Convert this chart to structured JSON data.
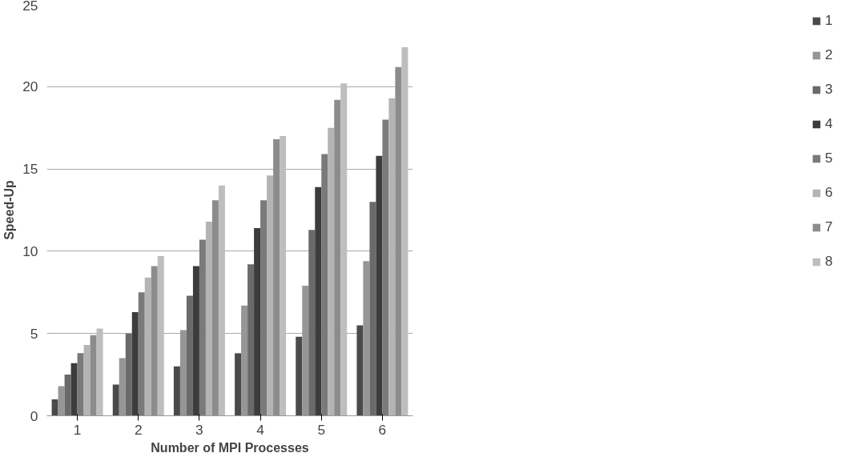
{
  "chart_data": {
    "type": "bar",
    "xlabel": "Number of MPI Processes",
    "ylabel": "Speed-Up",
    "categories": [
      "1",
      "2",
      "3",
      "4",
      "5",
      "6"
    ],
    "series": [
      {
        "name": "1",
        "color": "#4a4a4a",
        "values": [
          1.0,
          1.9,
          3.0,
          3.8,
          4.8,
          5.5
        ]
      },
      {
        "name": "2",
        "color": "#969696",
        "values": [
          1.8,
          3.5,
          5.2,
          6.7,
          7.9,
          9.4
        ]
      },
      {
        "name": "3",
        "color": "#6a6a6a",
        "values": [
          2.5,
          5.0,
          7.3,
          9.2,
          11.3,
          13.0
        ]
      },
      {
        "name": "4",
        "color": "#3c3c3c",
        "values": [
          3.2,
          6.3,
          9.1,
          11.4,
          13.9,
          15.8
        ]
      },
      {
        "name": "5",
        "color": "#7a7a7a",
        "values": [
          3.8,
          7.5,
          10.7,
          13.1,
          15.9,
          18.0
        ]
      },
      {
        "name": "6",
        "color": "#b4b4b4",
        "values": [
          4.3,
          8.4,
          11.8,
          14.6,
          17.5,
          19.3
        ]
      },
      {
        "name": "7",
        "color": "#8c8c8c",
        "values": [
          4.9,
          9.1,
          13.1,
          16.8,
          19.2,
          21.2
        ]
      },
      {
        "name": "8",
        "color": "#bebebe",
        "values": [
          5.3,
          9.7,
          14.0,
          17.0,
          20.2,
          22.4
        ]
      }
    ],
    "ylim": [
      0,
      25
    ],
    "yticks": [
      0,
      5,
      10,
      15,
      20,
      25
    ],
    "grid": "y",
    "legend": "right"
  }
}
